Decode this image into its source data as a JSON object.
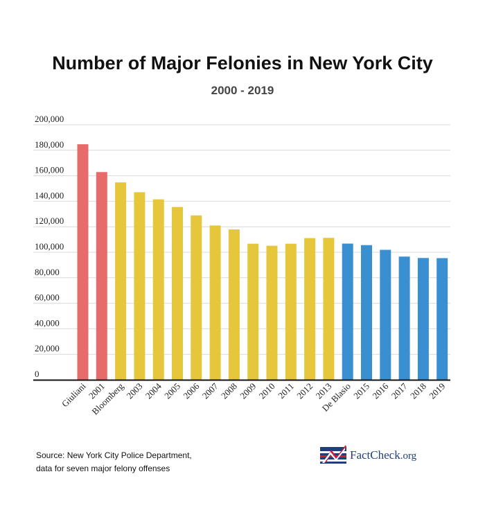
{
  "chart_data": {
    "type": "bar",
    "title": "Number of Major Felonies in New York City",
    "subtitle": "2000 - 2019",
    "xlabel": "",
    "ylabel": "",
    "ylim": [
      0,
      200000
    ],
    "y_ticks": [
      "0",
      "20,000",
      "40,000",
      "60,000",
      "80,000",
      "100,000",
      "120,000",
      "140,000",
      "160,000",
      "180,000",
      "200,000"
    ],
    "categories": [
      "Giuliani",
      "2001",
      "Bloomberg",
      "2003",
      "2004",
      "2005",
      "2006",
      "2007",
      "2008",
      "2009",
      "2010",
      "2011",
      "2012",
      "2013",
      "De Blasio",
      "2015",
      "2016",
      "2017",
      "2018",
      "2019"
    ],
    "values": [
      184700,
      162900,
      154800,
      147100,
      141500,
      135500,
      128900,
      121000,
      117900,
      106700,
      105100,
      106700,
      111100,
      111300,
      106800,
      105600,
      101900,
      96600,
      95500,
      95400
    ],
    "colors": [
      "#e86b6b",
      "#e86b6b",
      "#e6c73c",
      "#e6c73c",
      "#e6c73c",
      "#e6c73c",
      "#e6c73c",
      "#e6c73c",
      "#e6c73c",
      "#e6c73c",
      "#e6c73c",
      "#e6c73c",
      "#e6c73c",
      "#e6c73c",
      "#3a8fd1",
      "#3a8fd1",
      "#3a8fd1",
      "#3a8fd1",
      "#3a8fd1",
      "#3a8fd1"
    ],
    "grid": true
  },
  "source": {
    "line1": "Source: New York City Police Department,",
    "line2": "data for seven major felony offenses"
  },
  "logo": {
    "text_main": "FactCheck",
    "text_small": ".org"
  }
}
